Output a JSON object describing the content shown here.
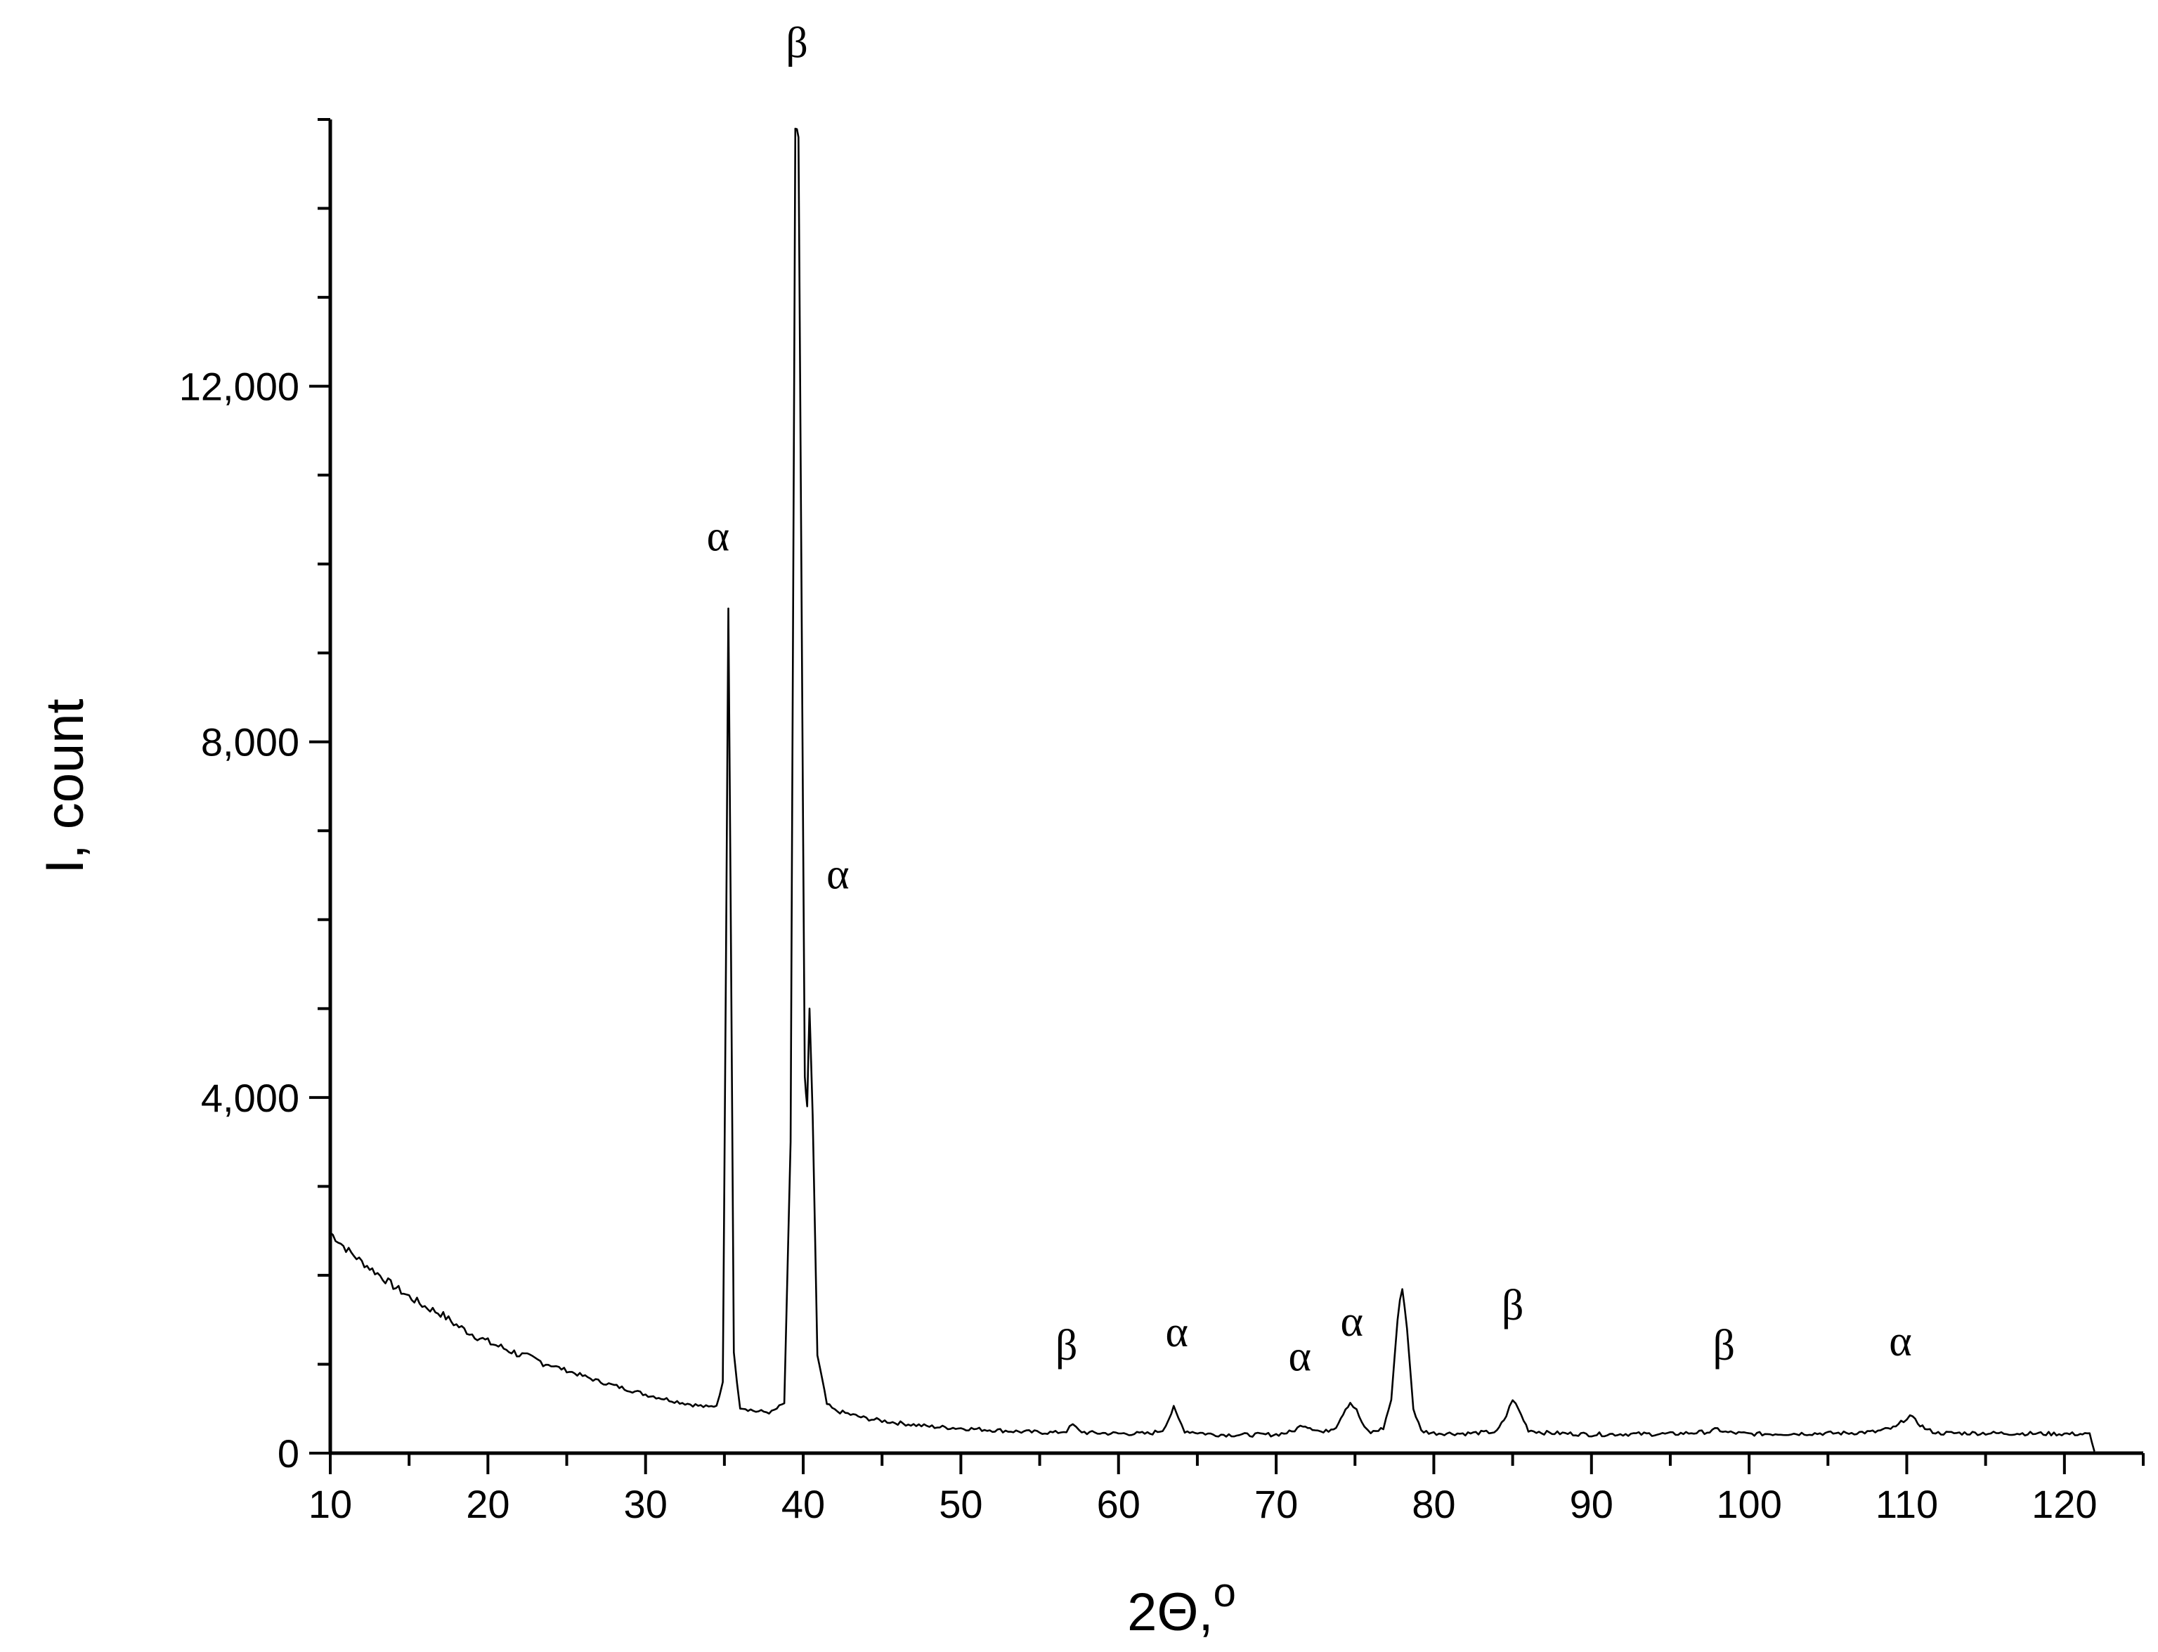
{
  "chart_data": {
    "type": "line",
    "title": "",
    "xlabel": "2Θ,",
    "xlabel_sup": "o",
    "ylabel": "I, count",
    "xlim": [
      10,
      125
    ],
    "ylim": [
      0,
      15000
    ],
    "x_ticks": [
      10,
      20,
      30,
      40,
      50,
      60,
      70,
      80,
      90,
      100,
      110,
      120
    ],
    "x_tick_labels": [
      "10",
      "20",
      "30",
      "40",
      "50",
      "60",
      "70",
      "80",
      "90",
      "100",
      "110",
      "120"
    ],
    "x_minor_step": 5,
    "y_ticks": [
      0,
      4000,
      8000,
      12000
    ],
    "y_tick_labels": [
      "0",
      "4,000",
      "8,000",
      "12,000"
    ],
    "y_minor_step": 1000,
    "grid": false,
    "series": [
      {
        "points": [
          [
            10,
            2480
          ],
          [
            11,
            2300
          ],
          [
            12,
            2150
          ],
          [
            13,
            2020
          ],
          [
            14,
            1880
          ],
          [
            15,
            1760
          ],
          [
            16,
            1650
          ],
          [
            17,
            1570
          ],
          [
            18,
            1440
          ],
          [
            19,
            1340
          ],
          [
            20,
            1250
          ],
          [
            21,
            1180
          ],
          [
            22,
            1110
          ],
          [
            23,
            1050
          ],
          [
            24,
            990
          ],
          [
            25,
            930
          ],
          [
            26,
            870
          ],
          [
            27,
            810
          ],
          [
            28,
            760
          ],
          [
            29,
            710
          ],
          [
            30,
            660
          ],
          [
            31,
            620
          ],
          [
            32,
            580
          ],
          [
            33,
            545
          ],
          [
            34,
            515
          ],
          [
            34.5,
            540
          ],
          [
            34.9,
            800
          ],
          [
            35.1,
            5500
          ],
          [
            35.25,
            9500
          ],
          [
            35.4,
            6200
          ],
          [
            35.6,
            1100
          ],
          [
            36,
            520
          ],
          [
            37,
            470
          ],
          [
            38,
            460
          ],
          [
            38.8,
            560
          ],
          [
            39.2,
            3500
          ],
          [
            39.5,
            14900
          ],
          [
            39.7,
            14800
          ],
          [
            39.9,
            9500
          ],
          [
            40.1,
            4200
          ],
          [
            40.25,
            3900
          ],
          [
            40.4,
            5000
          ],
          [
            40.6,
            3800
          ],
          [
            40.9,
            1100
          ],
          [
            41.5,
            550
          ],
          [
            42,
            480
          ],
          [
            44,
            390
          ],
          [
            46,
            340
          ],
          [
            48,
            300
          ],
          [
            50,
            280
          ],
          [
            52,
            260
          ],
          [
            54,
            240
          ],
          [
            56,
            230
          ],
          [
            56.7,
            250
          ],
          [
            57.1,
            320
          ],
          [
            57.5,
            250
          ],
          [
            58,
            230
          ],
          [
            60,
            220
          ],
          [
            62,
            220
          ],
          [
            62.8,
            260
          ],
          [
            63.2,
            390
          ],
          [
            63.5,
            510
          ],
          [
            63.8,
            390
          ],
          [
            64.2,
            250
          ],
          [
            66,
            210
          ],
          [
            68,
            205
          ],
          [
            70,
            210
          ],
          [
            71,
            240
          ],
          [
            71.7,
            320
          ],
          [
            72.3,
            280
          ],
          [
            73,
            230
          ],
          [
            73.8,
            300
          ],
          [
            74.4,
            500
          ],
          [
            74.7,
            570
          ],
          [
            75.1,
            480
          ],
          [
            75.6,
            280
          ],
          [
            76,
            230
          ],
          [
            76.8,
            280
          ],
          [
            77.3,
            600
          ],
          [
            77.7,
            1500
          ],
          [
            78,
            1880
          ],
          [
            78.3,
            1400
          ],
          [
            78.7,
            500
          ],
          [
            79.2,
            250
          ],
          [
            80,
            225
          ],
          [
            82,
            220
          ],
          [
            84,
            240
          ],
          [
            84.6,
            420
          ],
          [
            85,
            610
          ],
          [
            85.4,
            480
          ],
          [
            86,
            260
          ],
          [
            87,
            230
          ],
          [
            90,
            210
          ],
          [
            92,
            215
          ],
          [
            95,
            215
          ],
          [
            97.5,
            240
          ],
          [
            98,
            270
          ],
          [
            98.5,
            235
          ],
          [
            100,
            215
          ],
          [
            103,
            220
          ],
          [
            106,
            225
          ],
          [
            108,
            240
          ],
          [
            109.3,
            290
          ],
          [
            109.8,
            370
          ],
          [
            110.2,
            420
          ],
          [
            110.7,
            340
          ],
          [
            111.3,
            260
          ],
          [
            112,
            225
          ],
          [
            115,
            225
          ],
          [
            118,
            220
          ],
          [
            121,
            215
          ],
          [
            121.6,
            210
          ],
          [
            121.9,
            20
          ]
        ]
      }
    ],
    "annotations": [
      {
        "text": "α",
        "x": 34.6,
        "y": 10150
      },
      {
        "text": "β",
        "x": 39.6,
        "y": 15700
      },
      {
        "text": "α",
        "x": 42.2,
        "y": 6350
      },
      {
        "text": "β",
        "x": 56.7,
        "y": 1050
      },
      {
        "text": "α",
        "x": 63.7,
        "y": 1200
      },
      {
        "text": "α",
        "x": 71.5,
        "y": 930
      },
      {
        "text": "α",
        "x": 74.8,
        "y": 1320
      },
      {
        "text": "β",
        "x": 85.0,
        "y": 1500
      },
      {
        "text": "β",
        "x": 98.4,
        "y": 1050
      },
      {
        "text": "α",
        "x": 109.6,
        "y": 1100
      }
    ]
  }
}
